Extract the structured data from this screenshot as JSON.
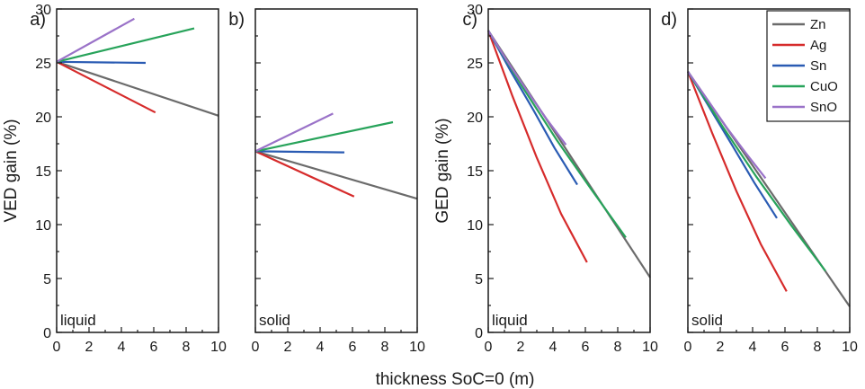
{
  "figure": {
    "xlabel": "thickness SoC=0 (m)"
  },
  "legend": {
    "position": "top-right of panel d",
    "entries": [
      {
        "name": "Zn",
        "color": "#6b6b6b"
      },
      {
        "name": "Ag",
        "color": "#d62b2b"
      },
      {
        "name": "Sn",
        "color": "#2a5bb3"
      },
      {
        "name": "CuO",
        "color": "#27a35a"
      },
      {
        "name": "SnO",
        "color": "#9a72c8"
      }
    ]
  },
  "chart_data": [
    {
      "panel": "a)",
      "type": "line",
      "condition": "liquid",
      "ylabel": "VED gain (%)",
      "xlim": [
        0,
        10
      ],
      "ylim": [
        0,
        30
      ],
      "xticks": [
        "0",
        "2",
        "4",
        "6",
        "8",
        "10"
      ],
      "yticks": [
        "0",
        "5",
        "10",
        "15",
        "20",
        "25",
        "30"
      ],
      "show_ytick_labels": true,
      "series": [
        {
          "name": "Zn",
          "x": [
            0,
            10
          ],
          "y": [
            25.1,
            20.1
          ]
        },
        {
          "name": "Ag",
          "x": [
            0,
            6.1
          ],
          "y": [
            25.1,
            20.4
          ]
        },
        {
          "name": "Sn",
          "x": [
            0,
            5.5
          ],
          "y": [
            25.1,
            25.0
          ]
        },
        {
          "name": "CuO",
          "x": [
            0,
            8.5
          ],
          "y": [
            25.1,
            28.2
          ]
        },
        {
          "name": "SnO",
          "x": [
            0,
            4.8
          ],
          "y": [
            25.1,
            29.1
          ]
        }
      ]
    },
    {
      "panel": "b)",
      "type": "line",
      "condition": "solid",
      "ylabel": "",
      "xlim": [
        0,
        10
      ],
      "ylim": [
        0,
        30
      ],
      "xticks": [
        "0",
        "2",
        "4",
        "6",
        "8",
        "10"
      ],
      "yticks": [
        "0",
        "5",
        "10",
        "15",
        "20",
        "25",
        "30"
      ],
      "show_ytick_labels": false,
      "series": [
        {
          "name": "Zn",
          "x": [
            0,
            10
          ],
          "y": [
            16.8,
            12.4
          ]
        },
        {
          "name": "Ag",
          "x": [
            0,
            6.1
          ],
          "y": [
            16.8,
            12.6
          ]
        },
        {
          "name": "Sn",
          "x": [
            0,
            5.5
          ],
          "y": [
            16.8,
            16.7
          ]
        },
        {
          "name": "CuO",
          "x": [
            0,
            8.5
          ],
          "y": [
            16.8,
            19.5
          ]
        },
        {
          "name": "SnO",
          "x": [
            0,
            4.8
          ],
          "y": [
            16.8,
            20.3
          ]
        }
      ]
    },
    {
      "panel": "c)",
      "type": "line",
      "condition": "liquid",
      "ylabel": "GED gain (%)",
      "xlim": [
        0,
        10
      ],
      "ylim": [
        0,
        30
      ],
      "xticks": [
        "0",
        "2",
        "4",
        "6",
        "8",
        "10"
      ],
      "yticks": [
        "0",
        "5",
        "10",
        "15",
        "20",
        "25",
        "30"
      ],
      "show_ytick_labels": true,
      "series": [
        {
          "name": "Zn",
          "x": [
            0,
            10
          ],
          "y": [
            28.0,
            5.1
          ]
        },
        {
          "name": "Ag",
          "x": [
            0,
            1.5,
            3.0,
            4.5,
            6.1
          ],
          "y": [
            28.0,
            21.9,
            16.2,
            11.0,
            6.5
          ]
        },
        {
          "name": "Sn",
          "x": [
            0,
            1.4,
            2.8,
            4.1,
            5.5
          ],
          "y": [
            28.0,
            24.2,
            20.6,
            17.1,
            13.7
          ]
        },
        {
          "name": "CuO",
          "x": [
            0,
            2.1,
            4.25,
            6.4,
            8.5
          ],
          "y": [
            28.0,
            22.8,
            17.8,
            13.2,
            8.8
          ]
        },
        {
          "name": "SnO",
          "x": [
            0,
            1.2,
            2.4,
            3.6,
            4.8
          ],
          "y": [
            28.0,
            25.1,
            22.4,
            19.8,
            17.4
          ]
        }
      ]
    },
    {
      "panel": "d)",
      "type": "line",
      "condition": "solid",
      "ylabel": "",
      "xlim": [
        0,
        10
      ],
      "ylim": [
        0,
        30
      ],
      "xticks": [
        "0",
        "2",
        "4",
        "6",
        "8",
        "10"
      ],
      "yticks": [
        "0",
        "5",
        "10",
        "15",
        "20",
        "25",
        "30"
      ],
      "show_ytick_labels": false,
      "series": [
        {
          "name": "Zn",
          "x": [
            0,
            10
          ],
          "y": [
            24.2,
            2.4
          ]
        },
        {
          "name": "Ag",
          "x": [
            0,
            1.5,
            3.0,
            4.5,
            6.1
          ],
          "y": [
            24.2,
            18.5,
            13.1,
            8.2,
            3.8
          ]
        },
        {
          "name": "Sn",
          "x": [
            0,
            1.4,
            2.8,
            4.1,
            5.5
          ],
          "y": [
            24.2,
            20.7,
            17.2,
            13.9,
            10.6
          ]
        },
        {
          "name": "CuO",
          "x": [
            0,
            2.1,
            4.25,
            6.4,
            8.5
          ],
          "y": [
            24.2,
            19.2,
            14.4,
            9.9,
            5.7
          ]
        },
        {
          "name": "SnO",
          "x": [
            0,
            1.2,
            2.4,
            3.6,
            4.8
          ],
          "y": [
            24.2,
            21.6,
            19.0,
            16.6,
            14.3
          ]
        }
      ]
    }
  ]
}
